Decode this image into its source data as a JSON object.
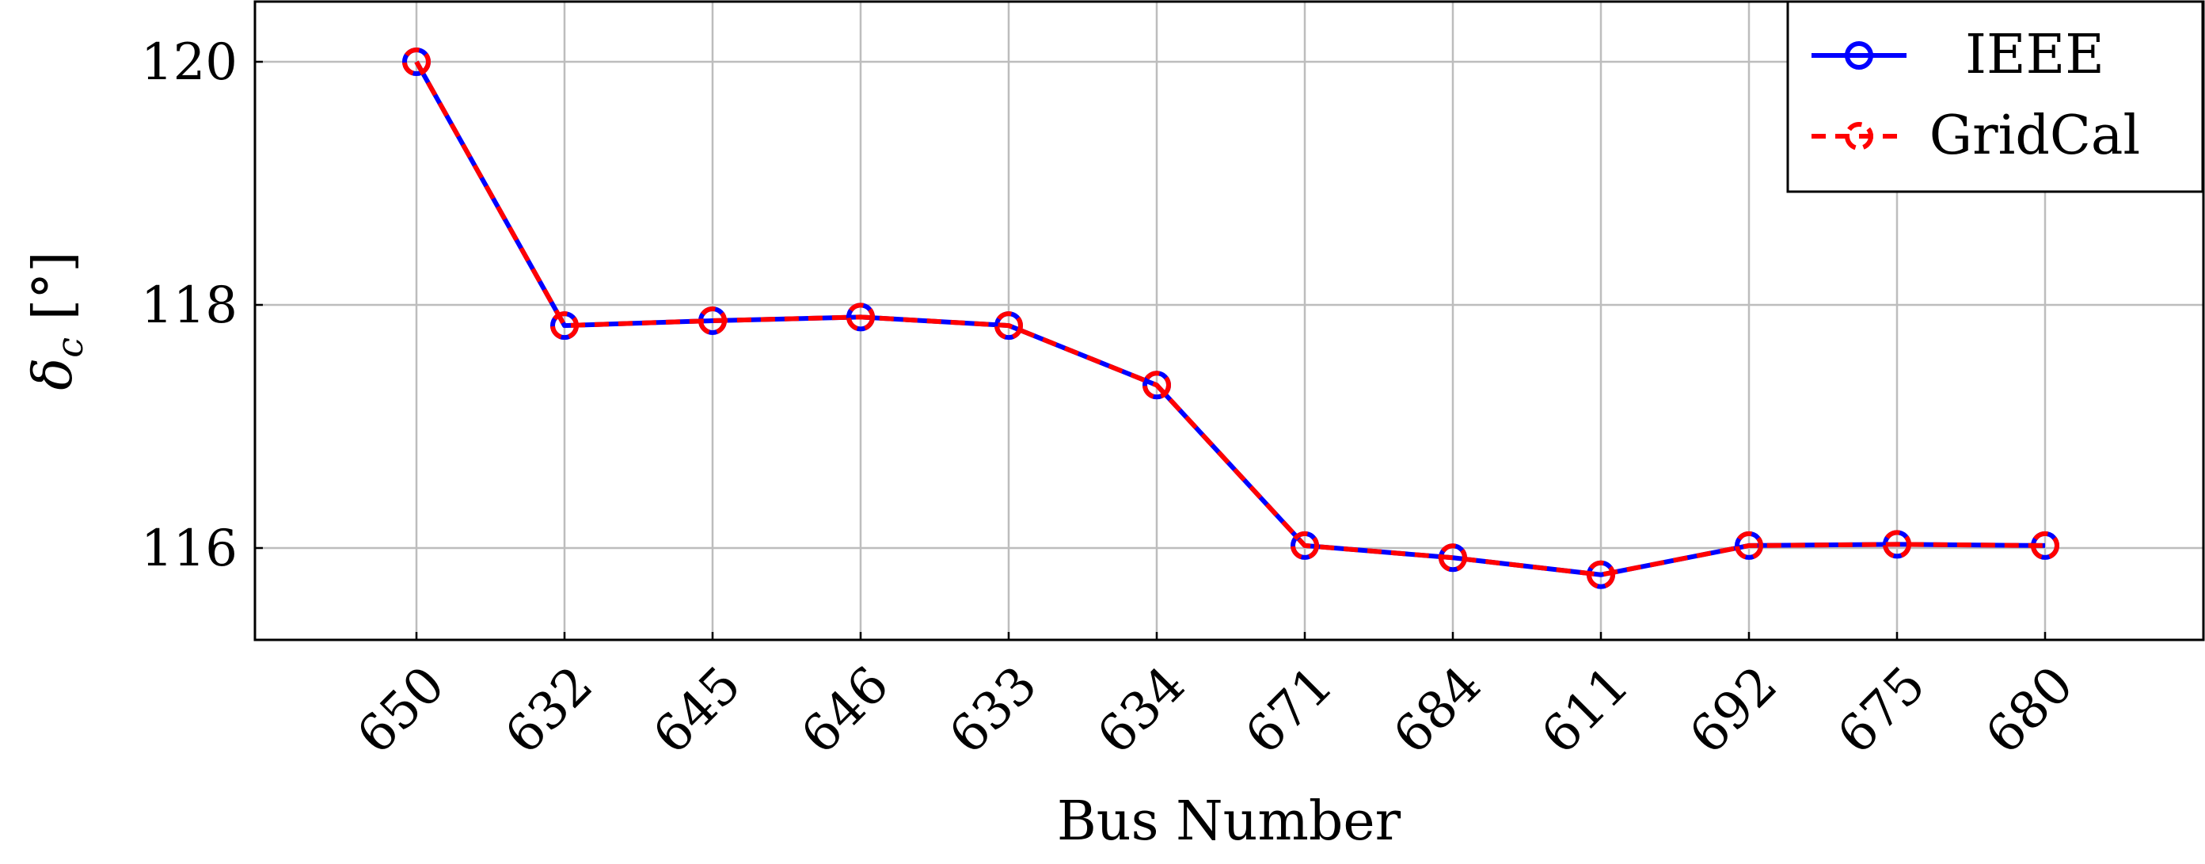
{
  "chart_data": {
    "type": "line",
    "categories": [
      "650",
      "632",
      "645",
      "646",
      "633",
      "634",
      "671",
      "684",
      "611",
      "692",
      "675",
      "680"
    ],
    "series": [
      {
        "name": "IEEE",
        "color": "#0000ff",
        "line_style": "solid",
        "marker": "circle",
        "values": [
          120.0,
          117.83,
          117.87,
          117.9,
          117.83,
          117.34,
          116.02,
          115.92,
          115.78,
          116.02,
          116.03,
          116.02
        ]
      },
      {
        "name": "GridCal",
        "color": "#ff0000",
        "line_style": "dashed",
        "marker": "circle",
        "values": [
          120.0,
          117.83,
          117.87,
          117.9,
          117.83,
          117.34,
          116.02,
          115.92,
          115.78,
          116.02,
          116.03,
          116.02
        ]
      }
    ],
    "xlabel": "Bus Number",
    "ylabel": "δc [°]",
    "ylabel_parts": {
      "symbol": "δ",
      "subscript": "c",
      "unit": "[°]"
    },
    "yticks": [
      116,
      118,
      120
    ],
    "ylim": [
      115.25,
      120.5
    ],
    "grid": true,
    "legend": "top-right",
    "x_tick_rotation": -45
  }
}
